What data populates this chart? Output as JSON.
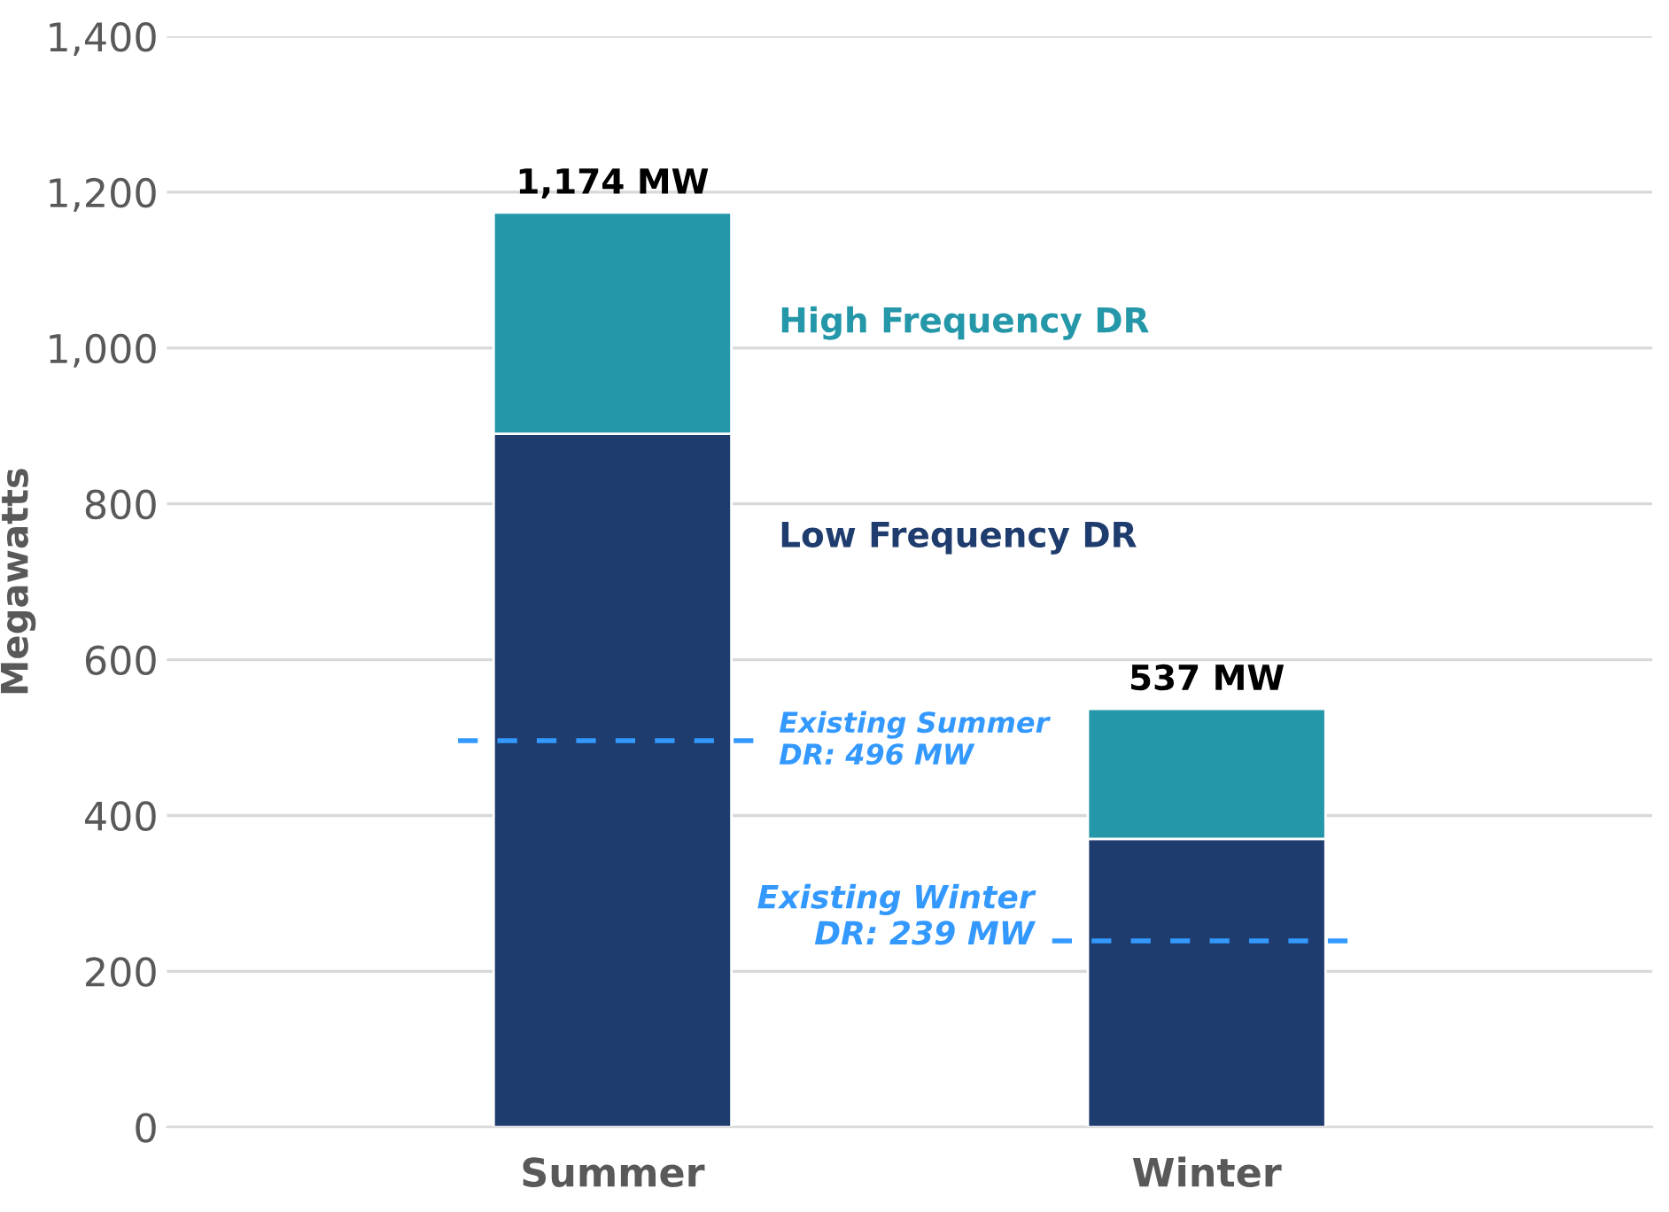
{
  "chart_data": {
    "type": "bar",
    "stacked": true,
    "ylabel": "Megawatts",
    "categories": [
      "Summer",
      "Winter"
    ],
    "series": [
      {
        "name": "Low Frequency DR",
        "color": "#1f3c6e",
        "values": [
          890,
          370
        ]
      },
      {
        "name": "High Frequency DR",
        "color": "#2497a8",
        "values": [
          284,
          167
        ]
      }
    ],
    "totals": [
      "1,174 MW",
      "537 MW"
    ],
    "ylim": [
      0,
      1400
    ],
    "yticks": [
      0,
      {
        "value": 200,
        "label": "200"
      },
      {
        "value": 400,
        "label": "400"
      },
      {
        "value": 600,
        "label": "600"
      },
      {
        "value": 800,
        "label": "800"
      },
      {
        "value": 1000,
        "label": "1,000"
      },
      {
        "value": 1200,
        "label": "1,200"
      },
      {
        "value": 1400,
        "label": "1,400"
      }
    ],
    "grid": "y",
    "legend": false,
    "ref_lines": [
      {
        "axis": "y",
        "value": 496,
        "label": "Existing Summer\nDR: 496 MW",
        "color": "#3399ff",
        "line_style": "dashed"
      },
      {
        "axis": "y",
        "value": 239,
        "label": "Existing Winter\nDR: 239 MW",
        "color": "#3399ff",
        "line_style": "dashed"
      }
    ]
  }
}
